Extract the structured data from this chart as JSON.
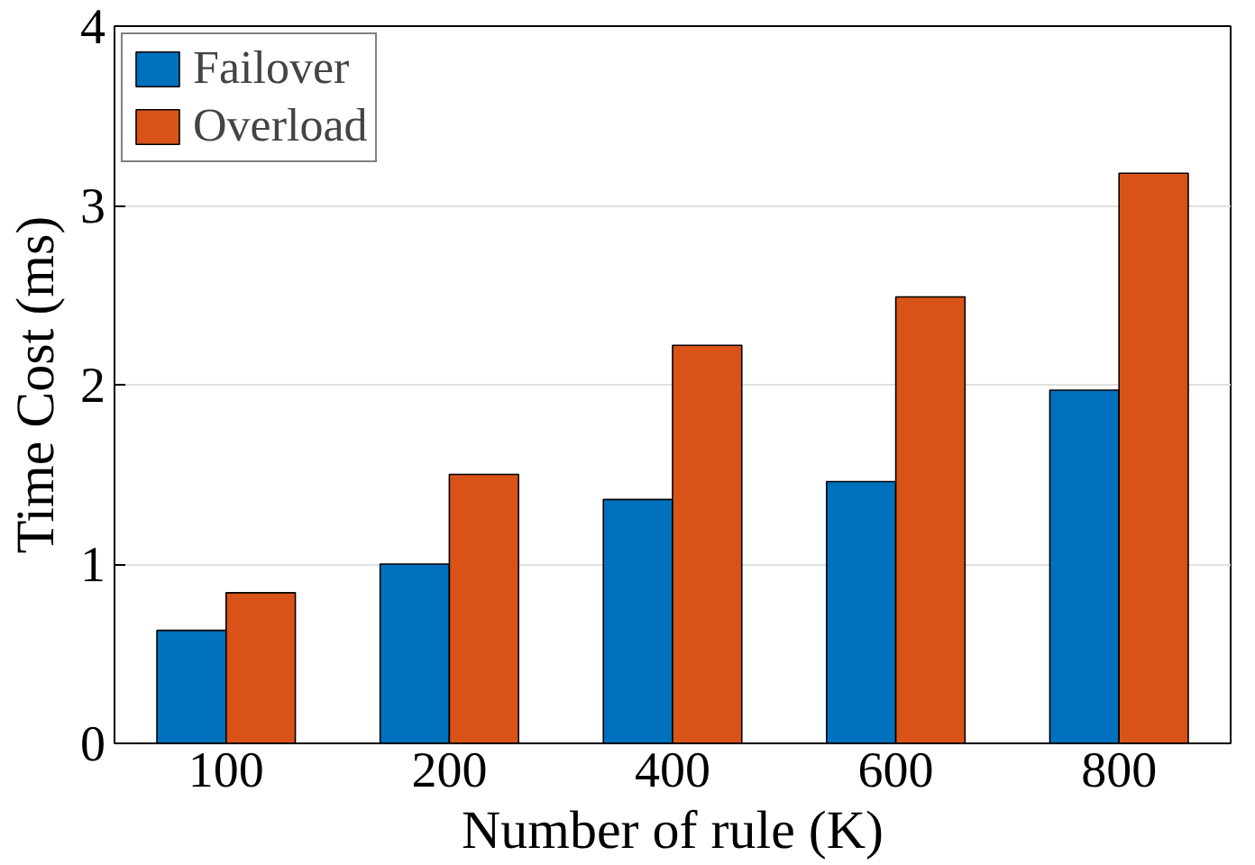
{
  "chart_data": {
    "type": "bar",
    "xlabel": "Number of rule (K)",
    "ylabel": "Time Cost (ms)",
    "categories": [
      "100",
      "200",
      "400",
      "600",
      "800"
    ],
    "series": [
      {
        "name": "Failover",
        "color": "#0072bd",
        "values": [
          0.63,
          1.0,
          1.36,
          1.46,
          1.97
        ]
      },
      {
        "name": "Overload",
        "color": "#d95319",
        "values": [
          0.84,
          1.5,
          2.22,
          2.49,
          3.18
        ]
      }
    ],
    "ylim": [
      0,
      4
    ],
    "yticks": [
      0,
      1,
      2,
      3,
      4
    ],
    "grid": "y",
    "legend": "top left"
  }
}
